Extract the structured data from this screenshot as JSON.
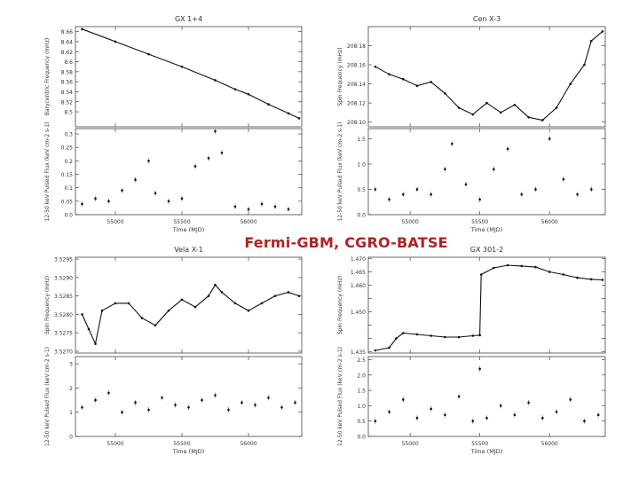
{
  "overlay": {
    "title": "Fermi-GBM, CGRO-BATSE"
  },
  "chart_data": [
    {
      "id": "gx1",
      "type": "line",
      "title": "GX 1+4",
      "xlabel": "Time (MJD)",
      "xticks": [
        55000,
        55500,
        56000
      ],
      "xlim": [
        54700,
        56400
      ],
      "top": {
        "ylabel": "Barycentric Frequency (mHz)",
        "ylim": [
          8.47,
          8.67
        ],
        "yticks": [
          8.5,
          8.52,
          8.54,
          8.56,
          8.58,
          8.6,
          8.62,
          8.64,
          8.66
        ],
        "yticklabels": [
          "8.5",
          "8.52",
          "8.54",
          "8.56",
          "8.58",
          "8.6",
          "8.62",
          "8.64",
          "8.66"
        ],
        "points": [
          [
            54750,
            8.665
          ],
          [
            55000,
            8.64
          ],
          [
            55250,
            8.615
          ],
          [
            55500,
            8.59
          ],
          [
            55750,
            8.563
          ],
          [
            55900,
            8.545
          ],
          [
            56000,
            8.535
          ],
          [
            56150,
            8.515
          ],
          [
            56300,
            8.497
          ],
          [
            56380,
            8.487
          ]
        ]
      },
      "bottom": {
        "ylabel": "12-50 keV Pulsed Flux (keV cm-2 s-1)",
        "ylim": [
          0,
          0.32
        ],
        "yticks": [
          0,
          0.05,
          0.1,
          0.15,
          0.2,
          0.25,
          0.3
        ],
        "yticklabels": [
          "0.0",
          "0.05",
          "0.1",
          "0.15",
          "0.2",
          "0.25",
          "0.3"
        ],
        "points": [
          [
            54750,
            0.04
          ],
          [
            54850,
            0.06
          ],
          [
            54950,
            0.05
          ],
          [
            55050,
            0.09
          ],
          [
            55150,
            0.13
          ],
          [
            55250,
            0.2
          ],
          [
            55300,
            0.08
          ],
          [
            55400,
            0.05
          ],
          [
            55500,
            0.06
          ],
          [
            55600,
            0.18
          ],
          [
            55700,
            0.21
          ],
          [
            55750,
            0.31
          ],
          [
            55800,
            0.23
          ],
          [
            55900,
            0.03
          ],
          [
            56000,
            0.02
          ],
          [
            56100,
            0.04
          ],
          [
            56200,
            0.03
          ],
          [
            56300,
            0.02
          ]
        ]
      }
    },
    {
      "id": "cenx3",
      "type": "line",
      "title": "Cen X-3",
      "xlabel": "Time (MJD)",
      "xticks": [
        55000,
        55500,
        56000
      ],
      "xlim": [
        54700,
        56400
      ],
      "top": {
        "ylabel": "Spin Frequency (mHz)",
        "ylim": [
          208.095,
          208.2
        ],
        "yticks": [
          208.1,
          208.12,
          208.14,
          208.16,
          208.18
        ],
        "yticklabels": [
          "208.10",
          "208.12",
          "208.14",
          "208.16",
          "208.18"
        ],
        "points": [
          [
            54750,
            208.158
          ],
          [
            54850,
            208.15
          ],
          [
            54950,
            208.145
          ],
          [
            55050,
            208.138
          ],
          [
            55150,
            208.142
          ],
          [
            55250,
            208.13
          ],
          [
            55350,
            208.115
          ],
          [
            55450,
            208.108
          ],
          [
            55550,
            208.12
          ],
          [
            55650,
            208.11
          ],
          [
            55750,
            208.118
          ],
          [
            55850,
            208.105
          ],
          [
            55950,
            208.102
          ],
          [
            56050,
            208.115
          ],
          [
            56150,
            208.14
          ],
          [
            56250,
            208.16
          ],
          [
            56300,
            208.185
          ],
          [
            56380,
            208.195
          ]
        ]
      },
      "bottom": {
        "ylabel": "12-50 keV Pulsed Flux (keV cm-2 s-1)",
        "ylim": [
          0,
          1.7
        ],
        "yticks": [
          0,
          0.5,
          1.0,
          1.5
        ],
        "yticklabels": [
          "0.0",
          "0.5",
          "1.0",
          "1.5"
        ],
        "points": [
          [
            54750,
            0.5
          ],
          [
            54850,
            0.3
          ],
          [
            54950,
            0.4
          ],
          [
            55050,
            0.5
          ],
          [
            55150,
            0.4
          ],
          [
            55250,
            0.9
          ],
          [
            55300,
            1.4
          ],
          [
            55400,
            0.6
          ],
          [
            55500,
            0.3
          ],
          [
            55600,
            0.9
          ],
          [
            55700,
            1.3
          ],
          [
            55800,
            0.4
          ],
          [
            55900,
            0.5
          ],
          [
            56000,
            1.5
          ],
          [
            56100,
            0.7
          ],
          [
            56200,
            0.4
          ],
          [
            56300,
            0.5
          ]
        ]
      }
    },
    {
      "id": "velax1",
      "type": "line",
      "title": "Vela X-1",
      "xlabel": "Time (MJD)",
      "xticks": [
        55000,
        55500,
        56000
      ],
      "xlim": [
        54700,
        56400
      ],
      "top": {
        "ylabel": "Spin Frequency (mHz)",
        "ylim": [
          3.52695,
          3.52955
        ],
        "yticks": [
          3.527,
          3.5275,
          3.528,
          3.5285,
          3.529,
          3.5295
        ],
        "yticklabels": [
          "3.5270",
          "3.5275",
          "3.5280",
          "3.5285",
          "3.5290",
          "3.5295"
        ],
        "points": [
          [
            54750,
            3.528
          ],
          [
            54800,
            3.5276
          ],
          [
            54850,
            3.5272
          ],
          [
            54900,
            3.5281
          ],
          [
            55000,
            3.5283
          ],
          [
            55100,
            3.5283
          ],
          [
            55200,
            3.5279
          ],
          [
            55300,
            3.5277
          ],
          [
            55400,
            3.5281
          ],
          [
            55500,
            3.5284
          ],
          [
            55600,
            3.5282
          ],
          [
            55700,
            3.5285
          ],
          [
            55750,
            3.5288
          ],
          [
            55800,
            3.5286
          ],
          [
            55900,
            3.5283
          ],
          [
            56000,
            3.5281
          ],
          [
            56100,
            3.5283
          ],
          [
            56200,
            3.5285
          ],
          [
            56300,
            3.5286
          ],
          [
            56380,
            3.5285
          ]
        ]
      },
      "bottom": {
        "ylabel": "12-50 keV Pulsed Flux (keV cm-2 s-1)",
        "ylim": [
          0,
          3.3
        ],
        "yticks": [
          0,
          1,
          2,
          3
        ],
        "yticklabels": [
          "0",
          "1",
          "2",
          "3"
        ],
        "points": [
          [
            54750,
            1.2
          ],
          [
            54850,
            1.5
          ],
          [
            54950,
            1.8
          ],
          [
            55050,
            1.0
          ],
          [
            55150,
            1.4
          ],
          [
            55250,
            1.1
          ],
          [
            55350,
            1.6
          ],
          [
            55450,
            1.3
          ],
          [
            55550,
            1.2
          ],
          [
            55650,
            1.5
          ],
          [
            55750,
            1.7
          ],
          [
            55850,
            1.1
          ],
          [
            55950,
            1.4
          ],
          [
            56050,
            1.3
          ],
          [
            56150,
            1.6
          ],
          [
            56250,
            1.2
          ],
          [
            56350,
            1.4
          ]
        ]
      }
    },
    {
      "id": "gx3012",
      "type": "line",
      "title": "GX 301-2",
      "xlabel": "Time (MJD)",
      "xticks": [
        55000,
        55500,
        56000
      ],
      "xlim": [
        54700,
        56400
      ],
      "top": {
        "ylabel": "Spin Frequency (mHz)",
        "ylim": [
          1.4345,
          1.4705
        ],
        "yticks": [
          1.435,
          1.44,
          1.445,
          1.45,
          1.455,
          1.46,
          1.465,
          1.47
        ],
        "yticklabels": [
          "1.435",
          "",
          "",
          "1.450",
          "",
          "1.460",
          "1.465",
          "1.470"
        ],
        "points": [
          [
            54750,
            1.4355
          ],
          [
            54850,
            1.4365
          ],
          [
            54900,
            1.44
          ],
          [
            54950,
            1.442
          ],
          [
            55050,
            1.4415
          ],
          [
            55150,
            1.441
          ],
          [
            55250,
            1.4405
          ],
          [
            55350,
            1.4405
          ],
          [
            55450,
            1.441
          ],
          [
            55500,
            1.4412
          ],
          [
            55510,
            1.464
          ],
          [
            55600,
            1.4665
          ],
          [
            55700,
            1.4675
          ],
          [
            55800,
            1.4672
          ],
          [
            55900,
            1.4668
          ],
          [
            56000,
            1.465
          ],
          [
            56100,
            1.464
          ],
          [
            56200,
            1.4628
          ],
          [
            56300,
            1.4622
          ],
          [
            56380,
            1.462
          ]
        ]
      },
      "bottom": {
        "ylabel": "12-50 keV Pulsed Flux (keV cm-2 s-1)",
        "ylim": [
          0,
          2.6
        ],
        "yticks": [
          0,
          0.5,
          1.0,
          1.5,
          2.0,
          2.5
        ],
        "yticklabels": [
          "0.0",
          "0.5",
          "1.0",
          "1.5",
          "2.0",
          "2.5"
        ],
        "points": [
          [
            54750,
            0.5
          ],
          [
            54850,
            0.8
          ],
          [
            54950,
            1.2
          ],
          [
            55050,
            0.6
          ],
          [
            55150,
            0.9
          ],
          [
            55250,
            0.7
          ],
          [
            55350,
            1.3
          ],
          [
            55450,
            0.5
          ],
          [
            55500,
            2.2
          ],
          [
            55550,
            0.6
          ],
          [
            55650,
            1.0
          ],
          [
            55750,
            0.7
          ],
          [
            55850,
            1.1
          ],
          [
            55950,
            0.6
          ],
          [
            56050,
            0.8
          ],
          [
            56150,
            1.2
          ],
          [
            56250,
            0.5
          ],
          [
            56350,
            0.7
          ]
        ]
      }
    }
  ]
}
